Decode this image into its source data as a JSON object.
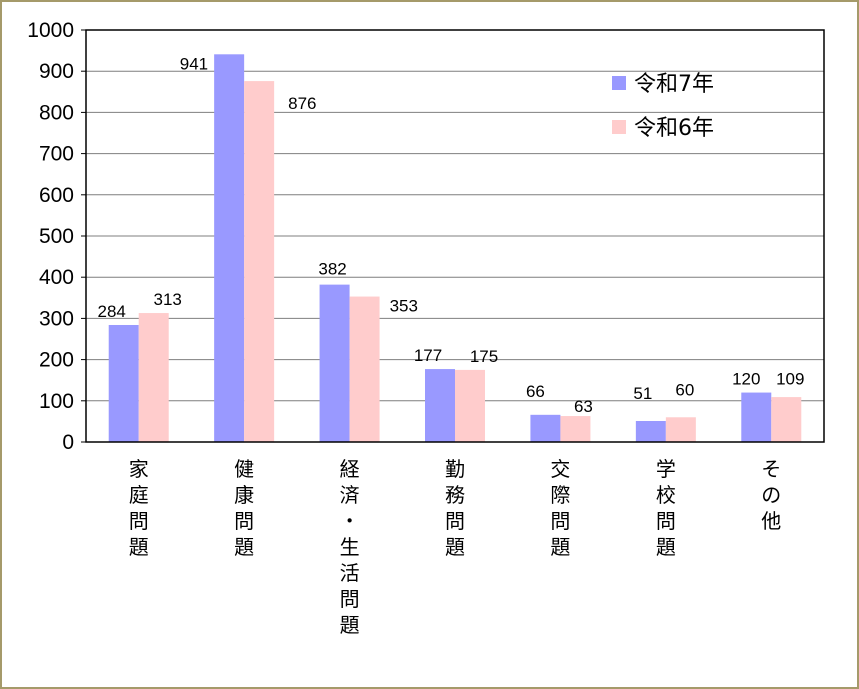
{
  "chart_data": {
    "type": "bar",
    "categories": [
      [
        "家",
        "庭",
        "問",
        "題"
      ],
      [
        "健",
        "康",
        "問",
        "題"
      ],
      [
        "経",
        "済",
        "・",
        "生",
        "活",
        "問",
        "題"
      ],
      [
        "勤",
        "務",
        "問",
        "題"
      ],
      [
        "交",
        "際",
        "問",
        "題"
      ],
      [
        "学",
        "校",
        "問",
        "題"
      ],
      [
        "そ",
        "の",
        "他"
      ]
    ],
    "series": [
      {
        "name": "令和7年",
        "color": "#9999ff",
        "values": [
          284,
          941,
          382,
          177,
          66,
          51,
          120
        ]
      },
      {
        "name": "令和6年",
        "color": "#ffcccc",
        "values": [
          313,
          876,
          353,
          175,
          63,
          60,
          109
        ]
      }
    ],
    "ylim": [
      0,
      1000
    ],
    "yticks": [
      0,
      100,
      200,
      300,
      400,
      500,
      600,
      700,
      800,
      900,
      1000
    ],
    "grid": true,
    "legend_position": "top-right",
    "title": "",
    "xlabel": "",
    "ylabel": ""
  }
}
